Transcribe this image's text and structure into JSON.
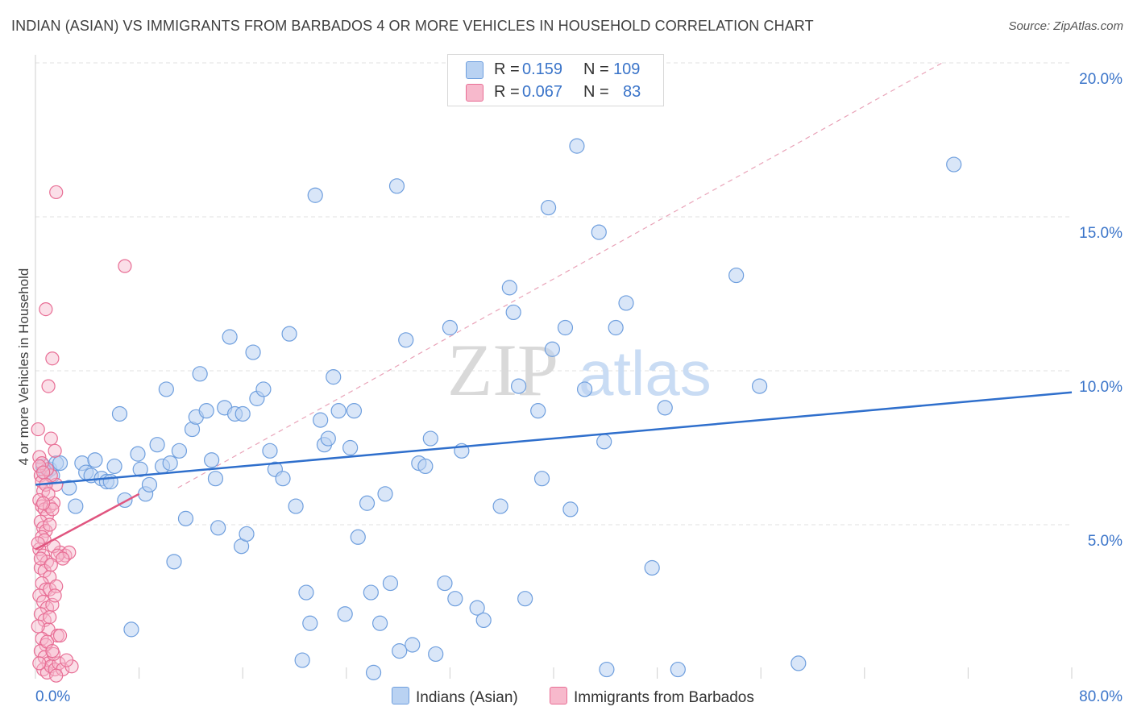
{
  "title": "INDIAN (ASIAN) VS IMMIGRANTS FROM BARBADOS 4 OR MORE VEHICLES IN HOUSEHOLD CORRELATION CHART",
  "source": "Source: ZipAtlas.com",
  "watermark": {
    "zip": "ZIP",
    "atlas": "atlas"
  },
  "legend_top": {
    "rows": [
      {
        "r_label": "R =",
        "r_value": "0.159",
        "n_label": "N =",
        "n_value": "109"
      },
      {
        "r_label": "R =",
        "r_value": "0.067",
        "n_label": "N =",
        "n_value": "83"
      }
    ]
  },
  "legend_bottom": [
    "Indians (Asian)",
    "Immigrants from Barbados"
  ],
  "colors": {
    "blue_fill": "#b9d2f2",
    "blue_stroke": "#6f9fde",
    "blue_line": "#2f6fcc",
    "pink_fill": "#f7b9cc",
    "pink_stroke": "#e86e95",
    "pink_line": "#e0557f",
    "blue_text": "#3a74c9",
    "grid": "#e2e2e2"
  },
  "chart_data": {
    "type": "scatter",
    "title": "INDIAN (ASIAN) VS IMMIGRANTS FROM BARBADOS 4 OR MORE VEHICLES IN HOUSEHOLD CORRELATION CHART",
    "xlabel": "",
    "ylabel": "4 or more Vehicles in Household",
    "xlim": [
      0,
      80
    ],
    "ylim": [
      0,
      20
    ],
    "x_tick_labels": [
      "0.0%",
      "80.0%"
    ],
    "y_ticks": [
      5,
      10,
      15,
      20
    ],
    "y_tick_labels": [
      "5.0%",
      "10.0%",
      "15.0%",
      "20.0%"
    ],
    "grid": true,
    "legend": "top-center",
    "series": [
      {
        "name": "Indians (Asian)",
        "color": "#b9d2f2",
        "trend": {
          "x": [
            0,
            80
          ],
          "y": [
            6.3,
            9.3
          ]
        },
        "reference_line": {
          "x": [
            11,
            70
          ],
          "y": [
            6.2,
            20
          ]
        },
        "points": [
          [
            0.6,
            6.9
          ],
          [
            0.8,
            6.7
          ],
          [
            1.1,
            6.8
          ],
          [
            1.3,
            6.6
          ],
          [
            1.6,
            7.0
          ],
          [
            1.9,
            7.0
          ],
          [
            2.6,
            6.2
          ],
          [
            3.1,
            5.6
          ],
          [
            3.6,
            7.0
          ],
          [
            3.9,
            6.7
          ],
          [
            4.3,
            6.6
          ],
          [
            4.6,
            7.1
          ],
          [
            5.1,
            6.5
          ],
          [
            5.5,
            6.4
          ],
          [
            5.8,
            6.4
          ],
          [
            6.1,
            6.9
          ],
          [
            6.5,
            8.6
          ],
          [
            6.9,
            5.8
          ],
          [
            7.4,
            1.6
          ],
          [
            7.9,
            7.3
          ],
          [
            8.1,
            6.8
          ],
          [
            8.5,
            6.0
          ],
          [
            8.8,
            6.3
          ],
          [
            9.4,
            7.6
          ],
          [
            9.8,
            6.9
          ],
          [
            10.1,
            9.4
          ],
          [
            10.4,
            7.0
          ],
          [
            10.7,
            3.8
          ],
          [
            11.1,
            7.4
          ],
          [
            11.6,
            5.2
          ],
          [
            12.1,
            8.1
          ],
          [
            12.4,
            8.5
          ],
          [
            12.7,
            9.9
          ],
          [
            13.2,
            8.7
          ],
          [
            13.6,
            7.1
          ],
          [
            13.9,
            6.5
          ],
          [
            14.1,
            4.9
          ],
          [
            14.6,
            8.8
          ],
          [
            15.0,
            11.1
          ],
          [
            15.4,
            8.6
          ],
          [
            15.9,
            4.3
          ],
          [
            16.0,
            8.6
          ],
          [
            16.3,
            4.7
          ],
          [
            16.8,
            10.6
          ],
          [
            17.1,
            9.1
          ],
          [
            17.6,
            9.4
          ],
          [
            18.1,
            7.4
          ],
          [
            18.5,
            6.8
          ],
          [
            19.1,
            6.5
          ],
          [
            19.6,
            11.2
          ],
          [
            20.1,
            5.6
          ],
          [
            20.6,
            0.6
          ],
          [
            20.9,
            2.8
          ],
          [
            21.2,
            1.8
          ],
          [
            21.6,
            15.7
          ],
          [
            22.0,
            8.4
          ],
          [
            22.3,
            7.6
          ],
          [
            22.6,
            7.8
          ],
          [
            23.0,
            9.8
          ],
          [
            23.4,
            8.7
          ],
          [
            23.9,
            2.1
          ],
          [
            24.3,
            7.5
          ],
          [
            24.6,
            8.7
          ],
          [
            24.9,
            4.6
          ],
          [
            25.6,
            5.7
          ],
          [
            25.9,
            2.8
          ],
          [
            26.1,
            0.2
          ],
          [
            26.6,
            1.8
          ],
          [
            27.0,
            6.0
          ],
          [
            27.4,
            3.1
          ],
          [
            27.9,
            16.0
          ],
          [
            28.1,
            0.9
          ],
          [
            28.6,
            11.0
          ],
          [
            29.1,
            1.1
          ],
          [
            29.6,
            7.0
          ],
          [
            30.1,
            6.9
          ],
          [
            30.5,
            7.8
          ],
          [
            30.9,
            0.8
          ],
          [
            31.6,
            3.1
          ],
          [
            32.0,
            11.4
          ],
          [
            32.4,
            2.6
          ],
          [
            32.9,
            7.4
          ],
          [
            34.1,
            2.3
          ],
          [
            34.6,
            1.9
          ],
          [
            35.9,
            5.6
          ],
          [
            36.6,
            12.7
          ],
          [
            36.9,
            11.9
          ],
          [
            37.3,
            9.5
          ],
          [
            37.8,
            2.6
          ],
          [
            38.8,
            8.7
          ],
          [
            39.1,
            6.5
          ],
          [
            39.6,
            15.3
          ],
          [
            39.9,
            10.7
          ],
          [
            40.9,
            11.4
          ],
          [
            41.3,
            5.5
          ],
          [
            41.8,
            17.3
          ],
          [
            42.4,
            9.4
          ],
          [
            43.5,
            14.5
          ],
          [
            43.9,
            7.7
          ],
          [
            44.1,
            0.3
          ],
          [
            44.8,
            11.4
          ],
          [
            45.6,
            12.2
          ],
          [
            47.6,
            3.6
          ],
          [
            48.6,
            8.8
          ],
          [
            49.6,
            0.3
          ],
          [
            54.1,
            13.1
          ],
          [
            55.9,
            9.5
          ],
          [
            58.9,
            0.5
          ],
          [
            70.9,
            16.7
          ]
        ]
      },
      {
        "name": "Immigrants from Barbados",
        "color": "#f7b9cc",
        "trend": {
          "x": [
            0,
            8.0
          ],
          "y": [
            4.2,
            6.0
          ]
        },
        "points": [
          [
            0.2,
            8.1
          ],
          [
            0.3,
            7.2
          ],
          [
            0.4,
            6.6
          ],
          [
            0.5,
            6.4
          ],
          [
            0.6,
            6.1
          ],
          [
            0.3,
            5.8
          ],
          [
            0.5,
            5.6
          ],
          [
            0.7,
            5.5
          ],
          [
            0.9,
            5.3
          ],
          [
            0.4,
            5.1
          ],
          [
            0.6,
            4.9
          ],
          [
            0.8,
            4.8
          ],
          [
            0.5,
            4.6
          ],
          [
            0.7,
            4.5
          ],
          [
            0.3,
            4.2
          ],
          [
            0.6,
            4.0
          ],
          [
            0.9,
            3.8
          ],
          [
            0.4,
            3.6
          ],
          [
            0.7,
            3.5
          ],
          [
            1.1,
            3.3
          ],
          [
            0.5,
            3.1
          ],
          [
            0.8,
            2.9
          ],
          [
            0.3,
            2.7
          ],
          [
            0.6,
            2.5
          ],
          [
            0.9,
            2.3
          ],
          [
            0.4,
            2.1
          ],
          [
            0.7,
            1.9
          ],
          [
            1.0,
            1.6
          ],
          [
            0.5,
            1.3
          ],
          [
            0.8,
            1.1
          ],
          [
            0.4,
            0.9
          ],
          [
            0.7,
            0.7
          ],
          [
            1.0,
            0.5
          ],
          [
            0.6,
            0.3
          ],
          [
            0.9,
            0.2
          ],
          [
            1.2,
            0.4
          ],
          [
            1.5,
            0.3
          ],
          [
            1.8,
            0.5
          ],
          [
            2.1,
            0.3
          ],
          [
            1.4,
            0.8
          ],
          [
            1.7,
            1.4
          ],
          [
            1.1,
            2.9
          ],
          [
            1.3,
            2.4
          ],
          [
            1.6,
            3.0
          ],
          [
            1.9,
            4.1
          ],
          [
            2.3,
            4.0
          ],
          [
            2.6,
            4.1
          ],
          [
            1.4,
            4.3
          ],
          [
            1.1,
            5.6
          ],
          [
            1.4,
            5.7
          ],
          [
            1.6,
            6.3
          ],
          [
            1.2,
            6.6
          ],
          [
            1.5,
            7.4
          ],
          [
            1.2,
            7.8
          ],
          [
            0.9,
            6.8
          ],
          [
            0.5,
            7.0
          ],
          [
            1.7,
            4.0
          ],
          [
            2.1,
            3.9
          ],
          [
            1.0,
            9.5
          ],
          [
            1.3,
            10.4
          ],
          [
            0.8,
            12.0
          ],
          [
            1.6,
            15.8
          ],
          [
            6.9,
            13.4
          ],
          [
            0.3,
            6.9
          ],
          [
            0.6,
            6.7
          ],
          [
            0.8,
            6.3
          ],
          [
            1.0,
            6.0
          ],
          [
            1.3,
            5.5
          ],
          [
            1.1,
            5.0
          ],
          [
            0.2,
            4.4
          ],
          [
            0.4,
            3.9
          ],
          [
            1.2,
            3.7
          ],
          [
            1.5,
            2.7
          ],
          [
            0.2,
            1.7
          ],
          [
            0.9,
            1.2
          ],
          [
            1.3,
            0.9
          ],
          [
            0.3,
            0.5
          ],
          [
            1.6,
            0.1
          ],
          [
            2.8,
            0.4
          ],
          [
            2.4,
            0.6
          ],
          [
            1.9,
            1.4
          ],
          [
            1.1,
            2.0
          ],
          [
            0.6,
            5.7
          ]
        ]
      }
    ]
  }
}
